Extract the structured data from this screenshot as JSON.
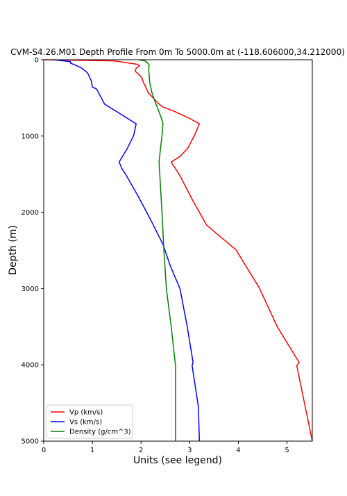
{
  "chart_data": {
    "type": "line",
    "title": "CVM-S4.26.M01 Depth Profile From 0m To 5000.0m at (-118.606000,34.212000)",
    "xlabel": "Units (see legend)",
    "ylabel": "Depth (m)",
    "xlim": [
      0,
      5.52
    ],
    "ylim": [
      5000,
      0
    ],
    "y_inverted": true,
    "grid": false,
    "legend_position": "lower-left",
    "xticks": [
      0,
      1,
      2,
      3,
      4,
      5
    ],
    "yticks": [
      0,
      1000,
      2000,
      3000,
      4000,
      5000
    ],
    "series": [
      {
        "name": "Vp (km/s)",
        "color": "#ff0000",
        "points": [
          [
            0.0,
            0
          ],
          [
            1.45,
            15
          ],
          [
            1.93,
            60
          ],
          [
            1.97,
            80
          ],
          [
            1.9,
            110
          ],
          [
            1.88,
            150
          ],
          [
            1.95,
            190
          ],
          [
            2.02,
            240
          ],
          [
            2.05,
            300
          ],
          [
            2.1,
            360
          ],
          [
            2.14,
            420
          ],
          [
            2.16,
            440
          ],
          [
            2.22,
            480
          ],
          [
            2.35,
            570
          ],
          [
            2.45,
            620
          ],
          [
            2.7,
            680
          ],
          [
            3.0,
            770
          ],
          [
            3.2,
            840
          ],
          [
            3.1,
            990
          ],
          [
            2.96,
            1160
          ],
          [
            2.8,
            1270
          ],
          [
            2.62,
            1340
          ],
          [
            2.7,
            1420
          ],
          [
            2.8,
            1520
          ],
          [
            3.05,
            1830
          ],
          [
            3.35,
            2170
          ],
          [
            3.95,
            2490
          ],
          [
            4.43,
            2990
          ],
          [
            4.8,
            3500
          ],
          [
            5.25,
            3970
          ],
          [
            5.2,
            4010
          ],
          [
            5.52,
            5000
          ]
        ]
      },
      {
        "name": "Vs (km/s)",
        "color": "#0000ff",
        "points": [
          [
            0.2,
            0
          ],
          [
            0.55,
            25
          ],
          [
            0.55,
            45
          ],
          [
            0.65,
            70
          ],
          [
            0.78,
            110
          ],
          [
            0.9,
            170
          ],
          [
            0.98,
            280
          ],
          [
            1.0,
            360
          ],
          [
            1.08,
            380
          ],
          [
            1.12,
            420
          ],
          [
            1.15,
            460
          ],
          [
            1.25,
            580
          ],
          [
            1.55,
            700
          ],
          [
            1.9,
            840
          ],
          [
            1.85,
            990
          ],
          [
            1.72,
            1160
          ],
          [
            1.55,
            1340
          ],
          [
            1.6,
            1420
          ],
          [
            1.7,
            1520
          ],
          [
            1.95,
            1800
          ],
          [
            2.2,
            2100
          ],
          [
            2.45,
            2420
          ],
          [
            2.6,
            2700
          ],
          [
            2.8,
            3000
          ],
          [
            2.95,
            3500
          ],
          [
            3.07,
            3970
          ],
          [
            3.05,
            4010
          ],
          [
            3.18,
            4550
          ],
          [
            3.2,
            5000
          ]
        ]
      },
      {
        "name": "Density (g/cm^3)",
        "color": "#008000",
        "points": [
          [
            1.95,
            0
          ],
          [
            2.08,
            15
          ],
          [
            2.14,
            45
          ],
          [
            2.17,
            70
          ],
          [
            2.16,
            100
          ],
          [
            2.16,
            150
          ],
          [
            2.17,
            220
          ],
          [
            2.18,
            300
          ],
          [
            2.2,
            360
          ],
          [
            2.22,
            420
          ],
          [
            2.25,
            480
          ],
          [
            2.3,
            570
          ],
          [
            2.35,
            650
          ],
          [
            2.42,
            770
          ],
          [
            2.45,
            840
          ],
          [
            2.43,
            1000
          ],
          [
            2.4,
            1160
          ],
          [
            2.37,
            1340
          ],
          [
            2.39,
            1560
          ],
          [
            2.43,
            2000
          ],
          [
            2.47,
            2500
          ],
          [
            2.52,
            3000
          ],
          [
            2.62,
            3500
          ],
          [
            2.7,
            3960
          ],
          [
            2.71,
            4010
          ],
          [
            2.71,
            5000
          ]
        ]
      }
    ]
  }
}
